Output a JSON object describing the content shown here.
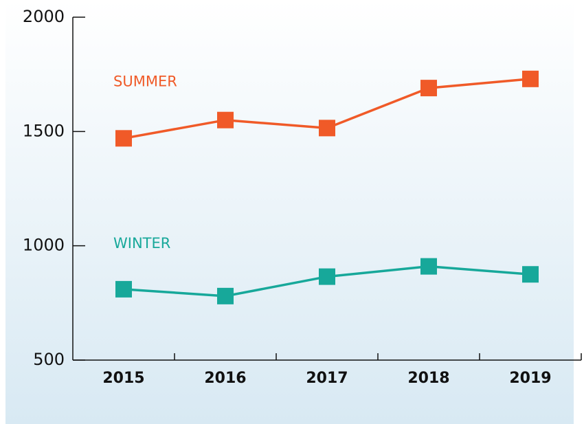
{
  "chart_data": {
    "type": "line",
    "categories": [
      "2015",
      "2016",
      "2017",
      "2018",
      "2019"
    ],
    "series": [
      {
        "name": "SUMMER",
        "color": "#f05a28",
        "values": [
          1470,
          1550,
          1515,
          1690,
          1730
        ]
      },
      {
        "name": "WINTER",
        "color": "#17a89a",
        "values": [
          810,
          780,
          865,
          910,
          875
        ]
      }
    ],
    "ylim": [
      500,
      2000
    ],
    "yticks": [
      500,
      1000,
      1500,
      2000
    ]
  }
}
